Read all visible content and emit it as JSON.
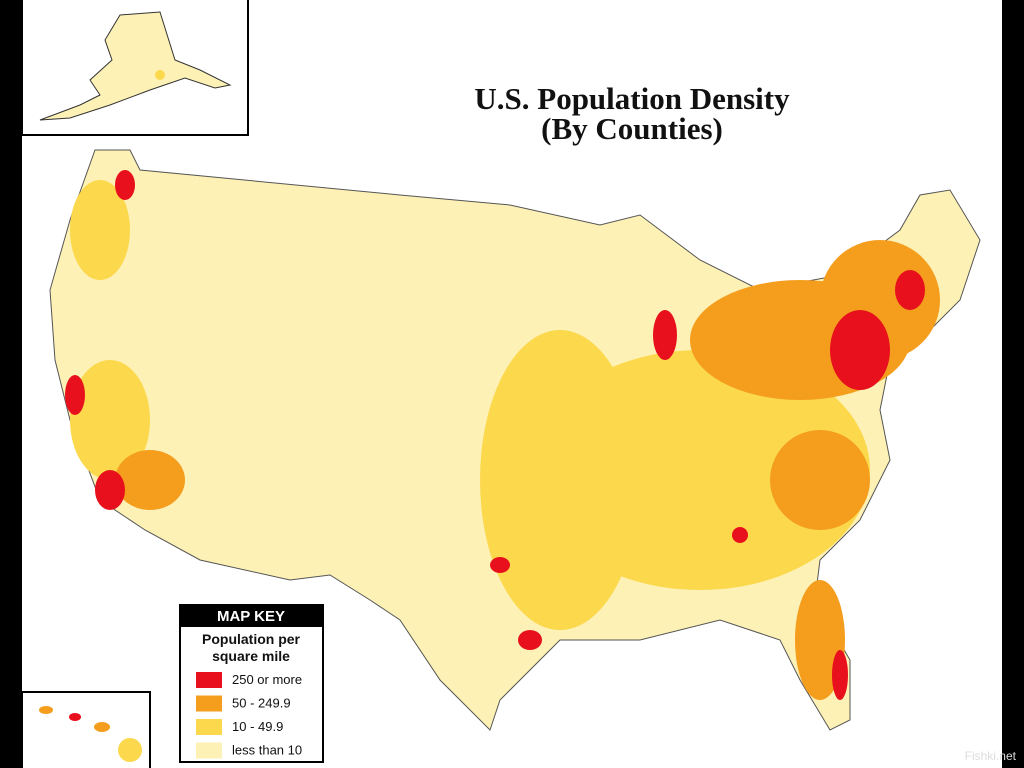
{
  "title": [
    "U.S. Population Density",
    "(By Counties)"
  ],
  "map_key": {
    "header": "MAP KEY",
    "subtitle": [
      "Population per",
      "square mile"
    ],
    "items": [
      {
        "label": "250 or more",
        "color": "#e8101c"
      },
      {
        "label": "50 - 249.9",
        "color": "#f59e1e"
      },
      {
        "label": "10 - 49.9",
        "color": "#fbd84c"
      },
      {
        "label": "less than 10",
        "color": "#fdf1b6"
      }
    ]
  },
  "watermark": "Fishki.net"
}
